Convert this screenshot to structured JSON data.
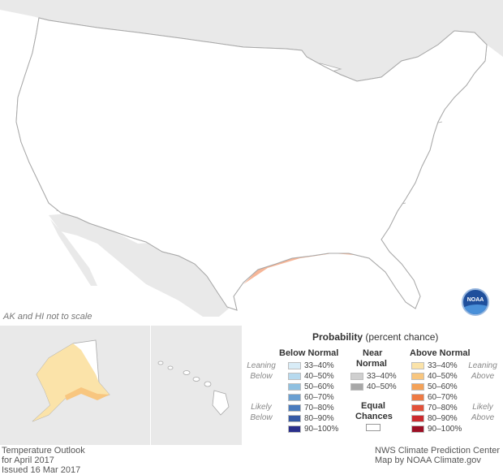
{
  "map": {
    "scale_note": "AK and HI not to scale",
    "colors": {
      "land": "#ffffff",
      "border": "#a9a9a9",
      "ocean": "#ffffff",
      "neighbor": "#e9e9e9",
      "lean_above": "#fbe3a9",
      "above_40_50": "#f8c67f",
      "above_50_60": "#f4a259",
      "above_60_70": "#ee7a44"
    }
  },
  "logo": {
    "text": "NOAA"
  },
  "legend": {
    "title_bold": "Probability",
    "title_rest": "(percent chance)",
    "below_header": "Below Normal",
    "near_header_1": "Near",
    "near_header_2": "Normal",
    "above_header": "Above Normal",
    "equal_1": "Equal",
    "equal_2": "Chances",
    "leaning_below_1": "Leaning",
    "leaning_below_2": "Below",
    "likely_below_1": "Likely",
    "likely_below_2": "Below",
    "leaning_above_1": "Leaning",
    "leaning_above_2": "Above",
    "likely_above_1": "Likely",
    "likely_above_2": "Above",
    "below": [
      {
        "range": "33–40%",
        "color": "#d8ecf7"
      },
      {
        "range": "40–50%",
        "color": "#b6d9ee"
      },
      {
        "range": "50–60%",
        "color": "#8fc0e0"
      },
      {
        "range": "60–70%",
        "color": "#6a9fd1"
      },
      {
        "range": "70–80%",
        "color": "#4a7bbd"
      },
      {
        "range": "80–90%",
        "color": "#3559a5"
      },
      {
        "range": "90–100%",
        "color": "#2a2f8b"
      }
    ],
    "near": [
      {
        "range": "33–40%",
        "color": "#cfcfcf"
      },
      {
        "range": "40–50%",
        "color": "#a8a8a8"
      }
    ],
    "above": [
      {
        "range": "33–40%",
        "color": "#fbe3a9"
      },
      {
        "range": "40–50%",
        "color": "#f8c67f"
      },
      {
        "range": "50–60%",
        "color": "#f4a259"
      },
      {
        "range": "60–70%",
        "color": "#ee7a44"
      },
      {
        "range": "70–80%",
        "color": "#e2513a"
      },
      {
        "range": "80–90%",
        "color": "#cc2a2e"
      },
      {
        "range": "90–100%",
        "color": "#9c0f24"
      }
    ]
  },
  "footer": {
    "left_1": "Temperature Outlook",
    "left_2": "for April 2017",
    "left_3": "Issued 16 Mar 2017",
    "right_1": "NWS Climate Prediction Center",
    "right_2": "Map by NOAA Climate.gov"
  }
}
